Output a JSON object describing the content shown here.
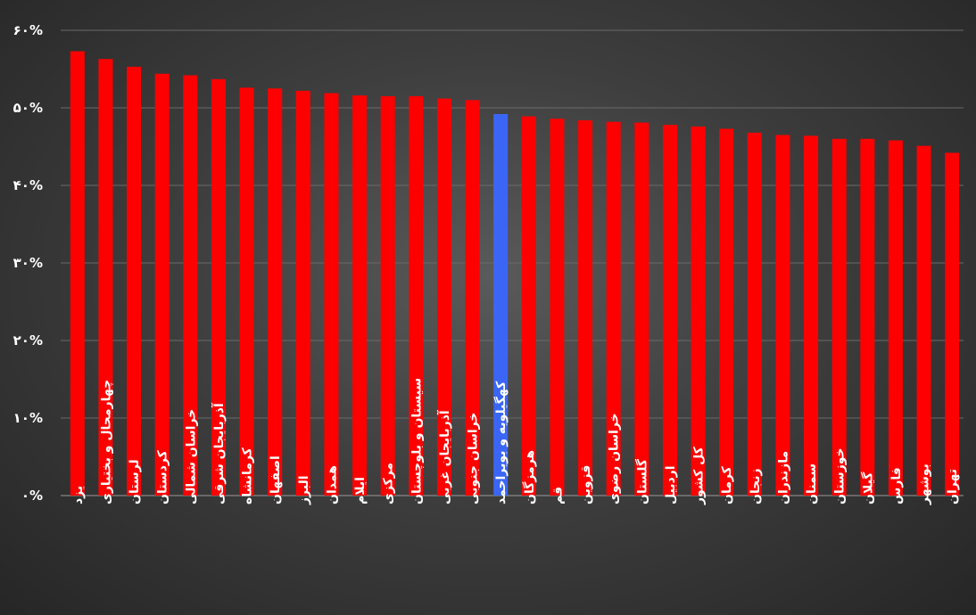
{
  "chart_data": {
    "type": "bar",
    "title": "",
    "xlabel": "",
    "ylabel": "",
    "ylim": [
      0,
      60
    ],
    "yticks": [
      0,
      10,
      20,
      30,
      40,
      50,
      60
    ],
    "ytick_labels": [
      "۰%",
      "۱۰%",
      "۲۰%",
      "۳۰%",
      "۴۰%",
      "۵۰%",
      "۶۰%"
    ],
    "grid": true,
    "legend": "none",
    "colors": {
      "default": "#ff0000",
      "highlight": "#3b66f5"
    },
    "highlight_category": "کهگیلویه و بویراحمد",
    "categories": [
      "یزد",
      "چهارمحال و بختیاری",
      "لرستان",
      "کردستان",
      "خراسان شمالی",
      "آذربایجان شرقی",
      "کرمانشاه",
      "اصفهان",
      "البرز",
      "همدان",
      "ایلام",
      "مرکزی",
      "سیستان و بلوچستان",
      "آذربایجان غربی",
      "خراسان جنوبی",
      "کهگیلویه و بویراحمد",
      "هرمزگان",
      "قم",
      "قزوین",
      "خراسان رضوی",
      "گلستان",
      "اردبیل",
      "کل کشور",
      "کرمان",
      "زنجان",
      "مازندران",
      "سمنان",
      "خوزستان",
      "گیلان",
      "فارس",
      "بوشهر",
      "تهران"
    ],
    "values": [
      57.3,
      56.3,
      55.3,
      54.4,
      54.2,
      53.7,
      52.6,
      52.5,
      52.2,
      51.9,
      51.6,
      51.5,
      51.5,
      51.2,
      51.0,
      49.2,
      48.9,
      48.6,
      48.4,
      48.2,
      48.1,
      47.8,
      47.6,
      47.3,
      46.8,
      46.5,
      46.4,
      46.0,
      46.0,
      45.8,
      45.1,
      44.2
    ]
  }
}
